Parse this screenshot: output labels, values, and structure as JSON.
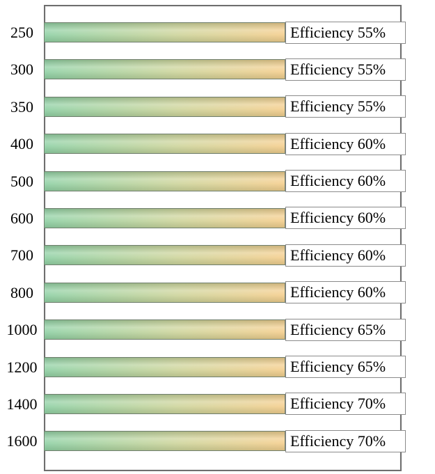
{
  "chart_data": {
    "type": "bar",
    "orientation": "horizontal",
    "title": "",
    "xlabel": "",
    "ylabel": "",
    "grid": false,
    "legend": "none",
    "bars_equal_length": true,
    "categories": [
      "250",
      "300",
      "350",
      "400",
      "500",
      "600",
      "700",
      "800",
      "1000",
      "1200",
      "1400",
      "1600"
    ],
    "series": [
      {
        "name": "Efficiency (%)",
        "values": [
          55,
          55,
          55,
          60,
          60,
          60,
          60,
          60,
          65,
          65,
          70,
          70
        ]
      }
    ],
    "rows": [
      {
        "category": "250",
        "label": "Efficiency 55%",
        "efficiency_percent": 55
      },
      {
        "category": "300",
        "label": "Efficiency 55%",
        "efficiency_percent": 55
      },
      {
        "category": "350",
        "label": "Efficiency 55%",
        "efficiency_percent": 55
      },
      {
        "category": "400",
        "label": "Efficiency 60%",
        "efficiency_percent": 60
      },
      {
        "category": "500",
        "label": "Efficiency 60%",
        "efficiency_percent": 60
      },
      {
        "category": "600",
        "label": "Efficiency 60%",
        "efficiency_percent": 60
      },
      {
        "category": "700",
        "label": "Efficiency 60%",
        "efficiency_percent": 60
      },
      {
        "category": "800",
        "label": "Efficiency 60%",
        "efficiency_percent": 60
      },
      {
        "category": "1000",
        "label": "Efficiency 65%",
        "efficiency_percent": 65
      },
      {
        "category": "1200",
        "label": "Efficiency 65%",
        "efficiency_percent": 65
      },
      {
        "category": "1400",
        "label": "Efficiency 70%",
        "efficiency_percent": 70
      },
      {
        "category": "1600",
        "label": "Efficiency 70%",
        "efficiency_percent": 70
      }
    ],
    "colors": {
      "bar_gradient_left": "#8ed0a3",
      "bar_gradient_mid": "#cdd49a",
      "bar_gradient_right": "#f4cd8b",
      "bar_border": "#6f7e6d",
      "frame_border": "#6e6e6e",
      "label_box_border": "#8a8a8a",
      "label_box_bg": "#ffffff",
      "text": "#000000",
      "background": "#ffffff"
    }
  }
}
